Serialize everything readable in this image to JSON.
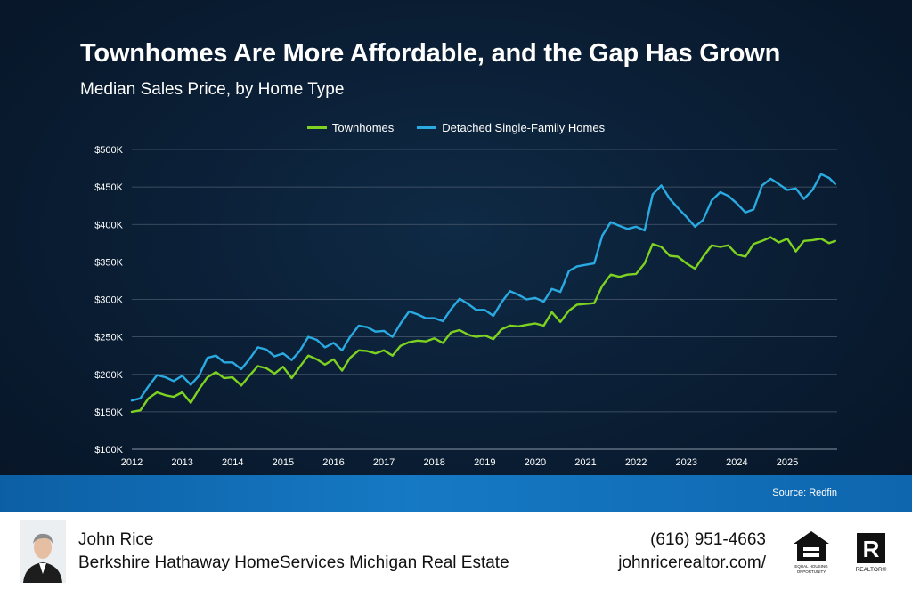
{
  "header": {
    "title": "Townhomes Are More Affordable, and the Gap Has Grown",
    "subtitle": "Median Sales Price, by Home Type"
  },
  "colors": {
    "townhomes": "#7ed321",
    "detached": "#29abe2",
    "grid": "#4a5a6e",
    "text": "#ffffff"
  },
  "source": "Source: Redfin",
  "footer": {
    "name": "John Rice",
    "company": "Berkshire Hathaway HomeServices Michigan Real Estate",
    "phone": "(616) 951-4663",
    "website": "johnricerealtor.com/",
    "logos": [
      "equal-housing-opportunity",
      "realtor"
    ]
  },
  "chart_data": {
    "type": "line",
    "title": "Townhomes Are More Affordable, and the Gap Has Grown",
    "subtitle": "Median Sales Price, by Home Type",
    "xlabel": "",
    "ylabel": "",
    "ylim": [
      100000,
      500000
    ],
    "xlim": [
      2012,
      2026
    ],
    "y_ticks": [
      100000,
      150000,
      200000,
      250000,
      300000,
      350000,
      400000,
      450000,
      500000
    ],
    "y_tick_labels": [
      "$100K",
      "$150K",
      "$200K",
      "$250K",
      "$300K",
      "$350K",
      "$400K",
      "$450K",
      "$500K"
    ],
    "x_ticks": [
      2012,
      2013,
      2014,
      2015,
      2016,
      2017,
      2018,
      2019,
      2020,
      2021,
      2022,
      2023,
      2024,
      2025
    ],
    "x_tick_labels": [
      "2012",
      "2013",
      "2014",
      "2015",
      "2016",
      "2017",
      "2018",
      "2019",
      "2020",
      "2021",
      "2022",
      "2023",
      "2024",
      "2025"
    ],
    "grid": true,
    "legend_position": "top-center",
    "x": [
      2012.0,
      2012.17,
      2012.33,
      2012.5,
      2012.67,
      2012.83,
      2013.0,
      2013.17,
      2013.33,
      2013.5,
      2013.67,
      2013.83,
      2014.0,
      2014.17,
      2014.33,
      2014.5,
      2014.67,
      2014.83,
      2015.0,
      2015.17,
      2015.33,
      2015.5,
      2015.67,
      2015.83,
      2016.0,
      2016.17,
      2016.33,
      2016.5,
      2016.67,
      2016.83,
      2017.0,
      2017.17,
      2017.33,
      2017.5,
      2017.67,
      2017.83,
      2018.0,
      2018.17,
      2018.33,
      2018.5,
      2018.67,
      2018.83,
      2019.0,
      2019.17,
      2019.33,
      2019.5,
      2019.67,
      2019.83,
      2020.0,
      2020.17,
      2020.33,
      2020.5,
      2020.67,
      2020.83,
      2021.0,
      2021.17,
      2021.33,
      2021.5,
      2021.67,
      2021.83,
      2022.0,
      2022.17,
      2022.33,
      2022.5,
      2022.67,
      2022.83,
      2023.0,
      2023.17,
      2023.33,
      2023.5,
      2023.67,
      2023.83,
      2024.0,
      2024.17,
      2024.33,
      2024.5,
      2024.67,
      2024.83,
      2025.0,
      2025.17,
      2025.33,
      2025.5,
      2025.67,
      2025.83,
      2025.95
    ],
    "series": [
      {
        "name": "Townhomes",
        "color": "#7ed321",
        "values": [
          150000,
          152000,
          168000,
          176000,
          172000,
          170000,
          176000,
          162000,
          180000,
          196000,
          203000,
          195000,
          196000,
          185000,
          198000,
          211000,
          208000,
          201000,
          210000,
          195000,
          210000,
          225000,
          220000,
          213000,
          220000,
          205000,
          222000,
          232000,
          231000,
          228000,
          232000,
          225000,
          238000,
          243000,
          245000,
          244000,
          248000,
          242000,
          256000,
          259000,
          253000,
          250000,
          252000,
          247000,
          260000,
          265000,
          264000,
          266000,
          268000,
          265000,
          283000,
          270000,
          285000,
          293000,
          294000,
          295000,
          318000,
          333000,
          330000,
          333000,
          334000,
          348000,
          374000,
          370000,
          358000,
          357000,
          348000,
          341000,
          357000,
          372000,
          370000,
          372000,
          360000,
          357000,
          374000,
          378000,
          383000,
          376000,
          381000,
          364000,
          378000,
          379000,
          381000,
          375000,
          378000,
          374000,
          373000
        ]
      },
      {
        "name": "Detached Single-Family Homes",
        "color": "#29abe2",
        "values": [
          165000,
          168000,
          184000,
          199000,
          196000,
          191000,
          198000,
          186000,
          198000,
          222000,
          225000,
          216000,
          216000,
          207000,
          220000,
          236000,
          233000,
          224000,
          228000,
          219000,
          231000,
          250000,
          246000,
          236000,
          242000,
          232000,
          250000,
          265000,
          263000,
          257000,
          258000,
          250000,
          268000,
          284000,
          280000,
          275000,
          275000,
          271000,
          287000,
          301000,
          294000,
          286000,
          286000,
          278000,
          296000,
          311000,
          306000,
          300000,
          302000,
          297000,
          314000,
          310000,
          338000,
          344000,
          346000,
          348000,
          385000,
          403000,
          398000,
          394000,
          397000,
          392000,
          440000,
          452000,
          434000,
          422000,
          410000,
          397000,
          406000,
          432000,
          443000,
          438000,
          428000,
          416000,
          420000,
          452000,
          461000,
          454000,
          446000,
          448000,
          434000,
          446000,
          467000,
          462000,
          454000,
          455000,
          446000
        ]
      }
    ]
  }
}
